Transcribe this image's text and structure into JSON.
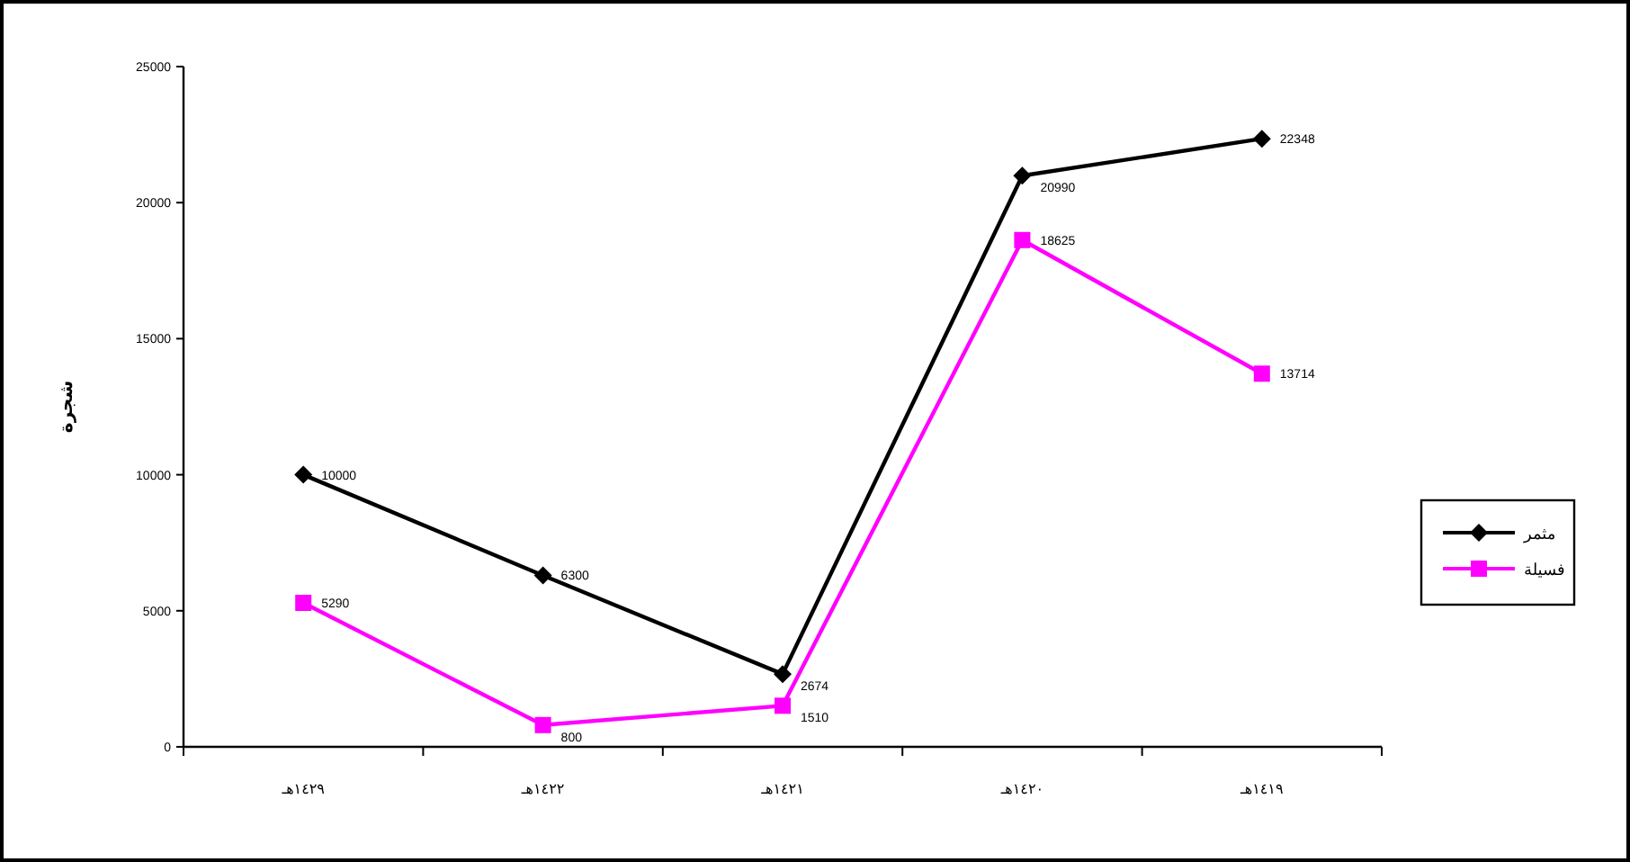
{
  "chart_data": {
    "type": "line",
    "ylabel": "شجرة",
    "categories": [
      "١٤٢٩هـ",
      "١٤٢٢هـ",
      "١٤٢١هـ",
      "١٤٢٠هـ",
      "١٤١٩هـ"
    ],
    "series": [
      {
        "name": "مثمر",
        "color": "#000000",
        "marker": "diamond",
        "values": [
          10000,
          6300,
          2674,
          20990,
          22348
        ]
      },
      {
        "name": "فسيلة",
        "color": "#ff00ff",
        "marker": "square",
        "values": [
          5290,
          800,
          1510,
          18625,
          13714
        ]
      }
    ],
    "ylim": [
      0,
      25000
    ],
    "yticks": [
      0,
      5000,
      10000,
      15000,
      20000,
      25000
    ],
    "data_labels": true,
    "legend": "right",
    "grid": false,
    "line_style": "solid"
  }
}
